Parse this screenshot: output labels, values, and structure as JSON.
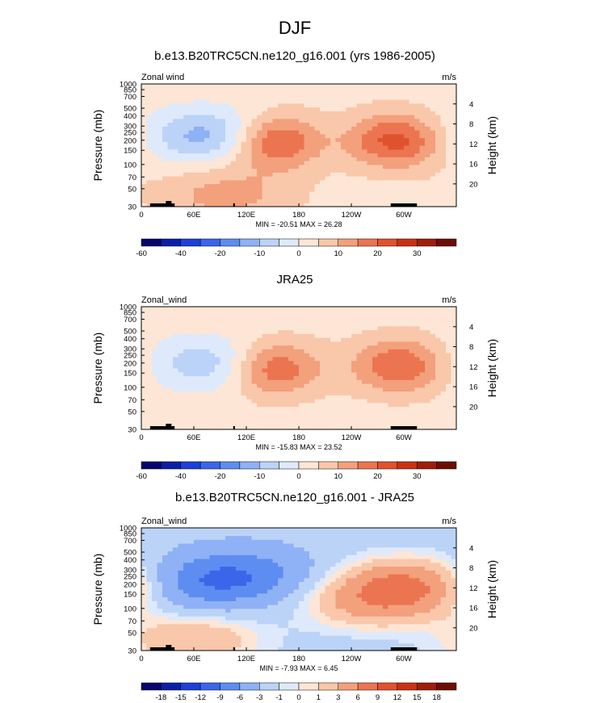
{
  "figure_title": "DJF",
  "chart_data": [
    {
      "type": "heatmap",
      "title": "b.e13.B20TRC5CN.ne120_g16.001 (yrs 1986-2005)",
      "left_label": "Zonal wind",
      "units": "m/s",
      "ylabel": "Pressure (mb)",
      "ylabel_right": "Height (km)",
      "x_ticks": [
        "0",
        "60E",
        "120E",
        "180",
        "120W",
        "60W"
      ],
      "y_ticks": [
        "30",
        "50",
        "70",
        "100",
        "150",
        "200",
        "250",
        "300",
        "400",
        "500",
        "700",
        "850",
        "1000"
      ],
      "height_ticks": [
        "20",
        "16",
        "12",
        "8",
        "4"
      ],
      "stats": "MIN = -20.51  MAX = 26.28",
      "min": -20.51,
      "max": 26.28,
      "levels": [
        -60,
        -50,
        -40,
        -30,
        -20,
        -15,
        -10,
        -5,
        0,
        5,
        10,
        15,
        20,
        25,
        30,
        35
      ],
      "colorbar_labels": [
        "-60",
        "-40",
        "-20",
        "-10",
        "0",
        "10",
        "20",
        "30"
      ],
      "background_value": 3,
      "features": [
        {
          "lon": 150,
          "p": 150,
          "value": 26,
          "kind": "westerly jet"
        },
        {
          "lon": 290,
          "p": 150,
          "value": 22,
          "kind": "westerly jet"
        },
        {
          "lon": 85,
          "p": 130,
          "value": -14,
          "kind": "easterlies"
        },
        {
          "lon": 95,
          "p": 700,
          "value": 12,
          "kind": "low-level westerlies"
        }
      ]
    },
    {
      "type": "heatmap",
      "title": "JRA25",
      "left_label": "Zonal_wind",
      "units": "m/s",
      "ylabel": "Pressure (mb)",
      "ylabel_right": "Height (km)",
      "x_ticks": [
        "0",
        "60E",
        "120E",
        "180",
        "120W",
        "60W"
      ],
      "y_ticks": [
        "30",
        "50",
        "70",
        "100",
        "150",
        "200",
        "250",
        "300",
        "400",
        "500",
        "700",
        "850",
        "1000"
      ],
      "height_ticks": [
        "20",
        "16",
        "12",
        "8",
        "4"
      ],
      "stats": "MIN = -15.83  MAX = 23.52",
      "min": -15.83,
      "max": 23.52,
      "levels": [
        -60,
        -50,
        -40,
        -30,
        -20,
        -15,
        -10,
        -5,
        0,
        5,
        10,
        15,
        20,
        25,
        30,
        35
      ],
      "colorbar_labels": [
        "-60",
        "-40",
        "-20",
        "-10",
        "0",
        "10",
        "20",
        "30"
      ],
      "background_value": 3,
      "features": [
        {
          "lon": 150,
          "p": 170,
          "value": 23,
          "kind": "westerly jet"
        },
        {
          "lon": 295,
          "p": 160,
          "value": 20,
          "kind": "westerly jet"
        },
        {
          "lon": 85,
          "p": 150,
          "value": -10,
          "kind": "easterlies"
        }
      ]
    },
    {
      "type": "heatmap",
      "title": "b.e13.B20TRC5CN.ne120_g16.001 - JRA25",
      "left_label": "Zonal_wind",
      "units": "m/s",
      "ylabel": "Pressure (mb)",
      "ylabel_right": "Height (km)",
      "x_ticks": [
        "0",
        "60E",
        "120E",
        "180",
        "120W",
        "60W"
      ],
      "y_ticks": [
        "30",
        "50",
        "70",
        "100",
        "150",
        "200",
        "250",
        "300",
        "400",
        "500",
        "700",
        "850",
        "1000"
      ],
      "height_ticks": [
        "20",
        "16",
        "12",
        "8",
        "4"
      ],
      "stats": "MIN = -7.93  MAX = 6.45",
      "min": -7.93,
      "max": 6.45,
      "levels": [
        -21,
        -18,
        -15,
        -12,
        -9,
        -6,
        -3,
        -1,
        0,
        1,
        3,
        6,
        9,
        12,
        15,
        18
      ],
      "colorbar_labels": [
        "-18",
        "-15",
        "-12",
        "-9",
        "-6",
        "-3",
        "-1",
        "0",
        "1",
        "3",
        "6",
        "9",
        "12",
        "15",
        "18"
      ],
      "background_value": -2,
      "features": [
        {
          "lon": 60,
          "p": 150,
          "value": -7,
          "kind": "negative bias"
        },
        {
          "lon": 120,
          "p": 110,
          "value": -7,
          "kind": "negative bias"
        },
        {
          "lon": 310,
          "p": 150,
          "value": 6,
          "kind": "positive bias"
        },
        {
          "lon": 260,
          "p": 250,
          "value": 3,
          "kind": "positive bias"
        },
        {
          "lon": 60,
          "p": 750,
          "value": 3,
          "kind": "positive bias"
        }
      ]
    }
  ],
  "colors": {
    "palette": [
      "#06066e",
      "#0a1fa8",
      "#1e40d8",
      "#3a66ea",
      "#5d8df0",
      "#8fb1f5",
      "#bcd3f8",
      "#deeafb",
      "#fde6d6",
      "#f9c7aa",
      "#f3a07c",
      "#ec7551",
      "#e0522d",
      "#c93214",
      "#a01d09",
      "#6e0d04"
    ],
    "topography": "#000000"
  }
}
